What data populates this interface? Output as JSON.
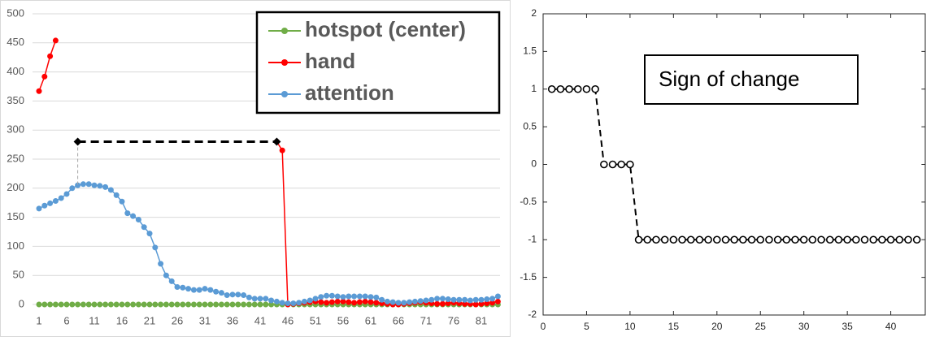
{
  "chart_data": [
    {
      "type": "line",
      "categories": [
        "1",
        null,
        null,
        null,
        null,
        "6",
        null,
        null,
        null,
        null,
        "11",
        null,
        null,
        null,
        null,
        "16",
        null,
        null,
        null,
        null,
        "21",
        null,
        null,
        null,
        null,
        "26",
        null,
        null,
        null,
        null,
        "31",
        null,
        null,
        null,
        null,
        "36",
        null,
        null,
        null,
        null,
        "41",
        null,
        null,
        null,
        null,
        "46",
        null,
        null,
        null,
        null,
        "51",
        null,
        null,
        null,
        null,
        "56",
        null,
        null,
        null,
        null,
        "61",
        null,
        null,
        null,
        null,
        "66",
        null,
        null,
        null,
        null,
        "71",
        null,
        null,
        null,
        null,
        "76",
        null,
        null,
        null,
        null,
        "81",
        null,
        null,
        null
      ],
      "series": [
        {
          "name": "hotspot (center)",
          "color": "#70ad47",
          "values": [
            0,
            0,
            0,
            0,
            0,
            0,
            0,
            0,
            0,
            0,
            0,
            0,
            0,
            0,
            0,
            0,
            0,
            0,
            0,
            0,
            0,
            0,
            0,
            0,
            0,
            0,
            0,
            0,
            0,
            0,
            0,
            0,
            0,
            0,
            0,
            0,
            0,
            0,
            0,
            0,
            0,
            0,
            0,
            0,
            0,
            0,
            0,
            0,
            0,
            0,
            0,
            0,
            0,
            0,
            0,
            0,
            0,
            0,
            0,
            0,
            0,
            0,
            0,
            0,
            0,
            0,
            0,
            0,
            0,
            0,
            0,
            0,
            0,
            0,
            0,
            0,
            0,
            0,
            0,
            0,
            0,
            0,
            0,
            0
          ]
        },
        {
          "name": "hand",
          "color": "#ff0000",
          "values": [
            367,
            392,
            427,
            454,
            null,
            null,
            null,
            null,
            null,
            null,
            null,
            null,
            null,
            null,
            null,
            null,
            null,
            null,
            null,
            null,
            null,
            null,
            null,
            null,
            null,
            null,
            null,
            null,
            null,
            null,
            null,
            null,
            null,
            null,
            null,
            null,
            null,
            null,
            null,
            null,
            null,
            null,
            null,
            280,
            265,
            0,
            1,
            2,
            3,
            4,
            5,
            4,
            3,
            4,
            5,
            5,
            4,
            3,
            4,
            5,
            4,
            3,
            2,
            1,
            0,
            0,
            1,
            2,
            3,
            4,
            3,
            2,
            1,
            1,
            2,
            3,
            2,
            1,
            1,
            0,
            1,
            2,
            3,
            5
          ]
        },
        {
          "name": "attention",
          "color": "#5b9bd5",
          "values": [
            165,
            170,
            174,
            178,
            183,
            190,
            200,
            205,
            207,
            207,
            205,
            204,
            202,
            197,
            188,
            177,
            157,
            152,
            146,
            133,
            122,
            98,
            70,
            50,
            40,
            30,
            29,
            27,
            25,
            25,
            27,
            25,
            22,
            20,
            16,
            17,
            17,
            16,
            12,
            10,
            10,
            10,
            7,
            5,
            3,
            2,
            2,
            3,
            5,
            7,
            10,
            13,
            15,
            15,
            14,
            13,
            14,
            14,
            14,
            14,
            13,
            12,
            8,
            5,
            4,
            3,
            3,
            4,
            5,
            6,
            7,
            8,
            10,
            10,
            9,
            8,
            8,
            8,
            7,
            8,
            8,
            9,
            10,
            14
          ]
        }
      ],
      "ylim": [
        0,
        500
      ],
      "yticks": [
        0,
        50,
        100,
        150,
        200,
        250,
        300,
        350,
        400,
        450,
        500
      ],
      "grid": true,
      "legend": "upper right",
      "span": {
        "x": [
          8,
          44
        ],
        "y": 280,
        "color": "#000000"
      }
    },
    {
      "type": "line",
      "annotation": "Sign of change",
      "x": [
        1,
        2,
        3,
        4,
        5,
        6,
        7,
        8,
        9,
        10,
        11,
        12,
        13,
        14,
        15,
        16,
        17,
        18,
        19,
        20,
        21,
        22,
        23,
        24,
        25,
        26,
        27,
        28,
        29,
        30,
        31,
        32,
        33,
        34,
        35,
        36,
        37,
        38,
        39,
        40,
        41,
        42,
        43
      ],
      "values": [
        1,
        1,
        1,
        1,
        1,
        1,
        0,
        0,
        0,
        0,
        -1,
        -1,
        -1,
        -1,
        -1,
        -1,
        -1,
        -1,
        -1,
        -1,
        -1,
        -1,
        -1,
        -1,
        -1,
        -1,
        -1,
        -1,
        -1,
        -1,
        -1,
        -1,
        -1,
        -1,
        -1,
        -1,
        -1,
        -1,
        -1,
        -1,
        -1,
        -1,
        -1
      ],
      "color": "#000000",
      "xlim": [
        0,
        44
      ],
      "xticks": [
        0,
        5,
        10,
        15,
        20,
        25,
        30,
        35,
        40
      ],
      "ylim": [
        -2,
        2
      ],
      "yticks": [
        -2,
        -1.5,
        -1,
        -0.5,
        0,
        0.5,
        1,
        1.5,
        2
      ]
    }
  ]
}
